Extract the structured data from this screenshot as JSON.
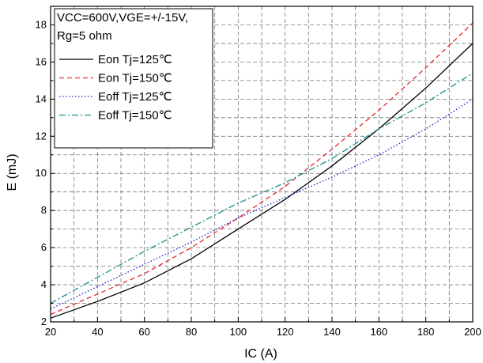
{
  "chart_data": {
    "type": "line",
    "xlabel": "IC (A)",
    "ylabel": "E (mJ)",
    "xlim": [
      20,
      200
    ],
    "ylim": [
      2,
      19
    ],
    "xticks": [
      20,
      40,
      60,
      80,
      100,
      120,
      140,
      160,
      180,
      200
    ],
    "yticks": [
      2,
      4,
      6,
      8,
      10,
      12,
      14,
      16,
      18
    ],
    "grid": true,
    "legend_position": "top-left",
    "conditions": {
      "line1": "VCC=600V,VGE=+/-15V,",
      "line2": "Rg=5 ohm"
    },
    "x": [
      20,
      40,
      60,
      80,
      100,
      120,
      140,
      160,
      180,
      200
    ],
    "series": [
      {
        "name": "Eon Tj=125℃",
        "color": "#000000",
        "dash": "solid",
        "values": [
          2.2,
          3.1,
          4.1,
          5.4,
          7.0,
          8.6,
          10.4,
          12.4,
          14.6,
          17.0
        ]
      },
      {
        "name": "Eon Tj=150℃",
        "color": "#e8262b",
        "dash": "dashed",
        "values": [
          2.4,
          3.5,
          4.6,
          6.0,
          7.6,
          9.3,
          11.3,
          13.4,
          15.7,
          18.1
        ]
      },
      {
        "name": "Eoff Tj=125℃",
        "color": "#2222cc",
        "dash": "dotted",
        "values": [
          2.7,
          3.9,
          5.1,
          6.3,
          7.6,
          8.7,
          9.8,
          11.0,
          12.4,
          14.0
        ]
      },
      {
        "name": "Eoff Tj=150℃",
        "color": "#1a9090",
        "dash": "dashdot",
        "values": [
          3.0,
          4.4,
          5.8,
          7.1,
          8.4,
          9.5,
          10.8,
          12.4,
          13.8,
          15.4
        ]
      }
    ]
  }
}
